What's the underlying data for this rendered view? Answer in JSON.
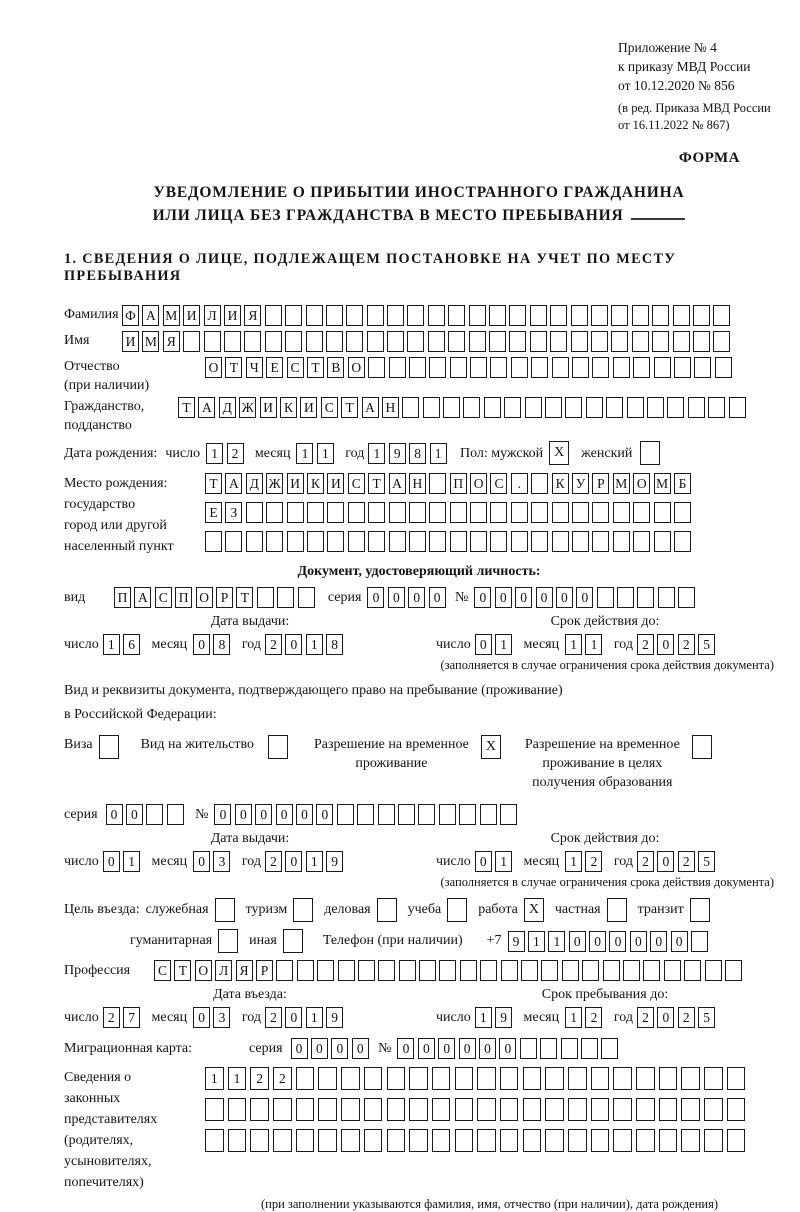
{
  "appendix": {
    "lines": [
      "Приложение № 4",
      "к приказу МВД России",
      "от 10.12.2020 № 856"
    ],
    "amendment": [
      "(в ред. Приказа МВД России",
      "от 16.11.2022 № 867)"
    ]
  },
  "form_label": "ФОРМА",
  "title": {
    "line1": "УВЕДОМЛЕНИЕ О ПРИБЫТИИ ИНОСТРАННОГО ГРАЖДАНИНА",
    "line2": "ИЛИ ЛИЦА БЕЗ ГРАЖДАНСТВА В МЕСТО ПРЕБЫВАНИЯ"
  },
  "section1": "1. СВЕДЕНИЯ О ЛИЦЕ, ПОДЛЕЖАЩЕМ ПОСТАНОВКЕ НА УЧЕТ ПО МЕСТУ ПРЕБЫВАНИЯ",
  "labels": {
    "day": "число",
    "month": "месяц",
    "year": "год",
    "series": "серия",
    "number": "№",
    "issue_date": "Дата выдачи:",
    "valid_until": "Срок действия до:",
    "validity_note": "(заполняется в случае ограничения срока действия документа)",
    "phone_prefix": "+7"
  },
  "surname": {
    "label": "Фамилия",
    "boxes": {
      "v": "ФАМИЛИЯ",
      "n": 30
    }
  },
  "given_name": {
    "label": "Имя",
    "boxes": {
      "v": "ИМЯ",
      "n": 30
    }
  },
  "patronymic": {
    "label1": "Отчество",
    "label2": "(при наличии)",
    "boxes": {
      "v": "ОТЧЕСТВО",
      "n": 26
    }
  },
  "citizenship": {
    "label1": "Гражданство,",
    "label2": "подданство",
    "boxes": {
      "v": "ТАДЖИКИСТАН",
      "n": 28
    }
  },
  "birth": {
    "label": "Дата рождения:",
    "day": {
      "v": "12",
      "n": 2
    },
    "month": {
      "v": "11",
      "n": 2
    },
    "year": {
      "v": "1981",
      "n": 4
    }
  },
  "sex": {
    "label": "Пол: мужской",
    "male": "X",
    "female_label": "женский",
    "female": ""
  },
  "birth_place": {
    "label": "Место рождения:",
    "sub": [
      "государство",
      "город или другой",
      "населенный пункт"
    ],
    "row1": {
      "v": "ТАДЖИКИСТАН ПОС. КУРМОМБ",
      "n": 24
    },
    "row2": {
      "v": "ЕЗ",
      "n": 24
    },
    "row3": {
      "v": "",
      "n": 24
    }
  },
  "identity_doc": {
    "heading": "Документ, удостоверяющий личность:",
    "vid_label": "вид",
    "vid": {
      "v": "ПАСПОРТ",
      "n": 10
    },
    "series": {
      "v": "0000",
      "n": 4
    },
    "number": {
      "v": "000000",
      "n": 11
    },
    "issue": {
      "day": {
        "v": "16",
        "n": 2
      },
      "month": {
        "v": "08",
        "n": 2
      },
      "year": {
        "v": "2018",
        "n": 4
      }
    },
    "valid": {
      "day": {
        "v": "01",
        "n": 2
      },
      "month": {
        "v": "11",
        "n": 2
      },
      "year": {
        "v": "2025",
        "n": 4
      }
    }
  },
  "residence": {
    "line1": "Вид и реквизиты документа, подтверждающего право на пребывание (проживание)",
    "line2": "в Российской Федерации:",
    "visa_label": "Виза",
    "visa": "",
    "rp_label": "Вид на жительство",
    "rp": "",
    "rvp_label": [
      "Разрешение на временное",
      "проживание"
    ],
    "rvp": "X",
    "rvpo_label": [
      "Разрешение на временное",
      "проживание в целях",
      "получения образования"
    ],
    "rvpo": "",
    "series": {
      "v": "00",
      "n": 4
    },
    "number": {
      "v": "000000",
      "n": 15
    },
    "issue": {
      "day": {
        "v": "01",
        "n": 2
      },
      "month": {
        "v": "03",
        "n": 2
      },
      "year": {
        "v": "2019",
        "n": 4
      }
    },
    "valid": {
      "day": {
        "v": "01",
        "n": 2
      },
      "month": {
        "v": "12",
        "n": 2
      },
      "year": {
        "v": "2025",
        "n": 4
      }
    }
  },
  "purpose": {
    "label": "Цель въезда:",
    "options": [
      {
        "label": "служебная",
        "v": ""
      },
      {
        "label": "туризм",
        "v": ""
      },
      {
        "label": "деловая",
        "v": ""
      },
      {
        "label": "учеба",
        "v": ""
      },
      {
        "label": "работа",
        "v": "X"
      },
      {
        "label": "частная",
        "v": ""
      },
      {
        "label": "транзит",
        "v": ""
      }
    ],
    "options2": [
      {
        "label": "гуманитарная",
        "v": ""
      },
      {
        "label": "иная",
        "v": ""
      }
    ],
    "phone_label": "Телефон (при наличии)",
    "phone": {
      "v": "911000000",
      "n": 10
    }
  },
  "profession": {
    "label": "Профессия",
    "boxes": {
      "v": "СТОЛЯР",
      "n": 29
    }
  },
  "entry": {
    "heading_left": "Дата въезда:",
    "heading_right": "Срок пребывания до:",
    "date": {
      "day": {
        "v": "27",
        "n": 2
      },
      "month": {
        "v": "03",
        "n": 2
      },
      "year": {
        "v": "2019",
        "n": 4
      }
    },
    "until": {
      "day": {
        "v": "19",
        "n": 2
      },
      "month": {
        "v": "12",
        "n": 2
      },
      "year": {
        "v": "2025",
        "n": 4
      }
    }
  },
  "migration_card": {
    "label": "Миграционная карта:",
    "series": {
      "v": "0000",
      "n": 4
    },
    "number": {
      "v": "000000",
      "n": 11
    }
  },
  "legal_reps": {
    "label_lines": [
      "Сведения о",
      "законных",
      "представителях",
      "(родителях,",
      "усыновителях,",
      "попечителях)"
    ],
    "row1": {
      "v": "1122",
      "n": 24
    },
    "row2": {
      "v": "",
      "n": 24
    },
    "row3": {
      "v": "",
      "n": 24
    },
    "note": "(при заполнении указываются фамилия, имя, отчество (при наличии), дата рождения)"
  }
}
